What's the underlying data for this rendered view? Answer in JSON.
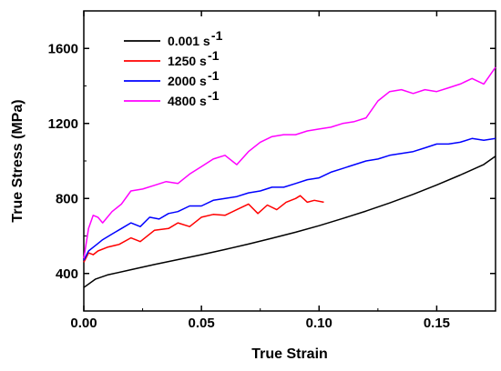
{
  "chart_data": {
    "type": "line",
    "xlabel": "True Strain",
    "ylabel": "True Stress (MPa)",
    "xlim": [
      0,
      0.175
    ],
    "ylim": [
      200,
      1800
    ],
    "xticks": [
      0.0,
      0.05,
      0.1,
      0.15
    ],
    "xtick_labels": [
      "0.00",
      "0.05",
      "0.10",
      "0.15"
    ],
    "yticks": [
      400,
      800,
      1200,
      1600
    ],
    "ytick_labels": [
      "400",
      "800",
      "1200",
      "1600"
    ],
    "grid": false,
    "legend_position": "top-left",
    "series": [
      {
        "name": "0.001 s",
        "superscript": "-1",
        "color": "#000000",
        "x": [
          0.0,
          0.005,
          0.01,
          0.02,
          0.03,
          0.04,
          0.05,
          0.06,
          0.07,
          0.08,
          0.09,
          0.1,
          0.11,
          0.12,
          0.13,
          0.14,
          0.15,
          0.16,
          0.17,
          0.175
        ],
        "y": [
          325,
          370,
          392,
          420,
          448,
          474,
          500,
          528,
          557,
          588,
          620,
          655,
          693,
          733,
          776,
          822,
          872,
          925,
          981,
          1025
        ]
      },
      {
        "name": "1250 s",
        "superscript": "-1",
        "color": "#ff0000",
        "x": [
          0.0,
          0.002,
          0.004,
          0.006,
          0.01,
          0.015,
          0.02,
          0.024,
          0.03,
          0.036,
          0.04,
          0.045,
          0.05,
          0.055,
          0.06,
          0.065,
          0.07,
          0.074,
          0.078,
          0.082,
          0.086,
          0.09,
          0.092,
          0.095,
          0.098,
          0.102
        ],
        "y": [
          460,
          510,
          500,
          520,
          540,
          555,
          590,
          570,
          630,
          640,
          670,
          650,
          700,
          715,
          710,
          740,
          770,
          720,
          765,
          740,
          780,
          800,
          815,
          780,
          790,
          780
        ]
      },
      {
        "name": "2000 s",
        "superscript": "-1",
        "color": "#0000ff",
        "x": [
          0.0,
          0.002,
          0.004,
          0.006,
          0.008,
          0.012,
          0.016,
          0.02,
          0.024,
          0.028,
          0.032,
          0.036,
          0.04,
          0.045,
          0.05,
          0.055,
          0.06,
          0.065,
          0.07,
          0.075,
          0.08,
          0.085,
          0.09,
          0.095,
          0.1,
          0.105,
          0.11,
          0.115,
          0.12,
          0.125,
          0.13,
          0.135,
          0.14,
          0.145,
          0.15,
          0.155,
          0.16,
          0.165,
          0.17,
          0.175
        ],
        "y": [
          470,
          520,
          540,
          560,
          580,
          610,
          640,
          670,
          650,
          700,
          690,
          720,
          730,
          760,
          760,
          790,
          800,
          810,
          830,
          840,
          860,
          860,
          880,
          900,
          910,
          940,
          960,
          980,
          1000,
          1010,
          1030,
          1040,
          1050,
          1070,
          1090,
          1090,
          1100,
          1120,
          1110,
          1120
        ]
      },
      {
        "name": "4800 s",
        "superscript": "-1",
        "color": "#ff00ff",
        "x": [
          0.0,
          0.002,
          0.004,
          0.006,
          0.008,
          0.012,
          0.016,
          0.02,
          0.025,
          0.03,
          0.035,
          0.04,
          0.045,
          0.05,
          0.055,
          0.06,
          0.065,
          0.07,
          0.075,
          0.08,
          0.085,
          0.09,
          0.095,
          0.1,
          0.105,
          0.11,
          0.115,
          0.12,
          0.125,
          0.13,
          0.135,
          0.14,
          0.145,
          0.15,
          0.155,
          0.16,
          0.165,
          0.17,
          0.175
        ],
        "y": [
          480,
          640,
          710,
          700,
          670,
          730,
          770,
          840,
          850,
          870,
          890,
          880,
          930,
          970,
          1010,
          1030,
          980,
          1050,
          1100,
          1130,
          1140,
          1140,
          1160,
          1170,
          1180,
          1200,
          1210,
          1230,
          1320,
          1370,
          1380,
          1360,
          1380,
          1370,
          1390,
          1410,
          1440,
          1410,
          1500
        ]
      }
    ]
  }
}
